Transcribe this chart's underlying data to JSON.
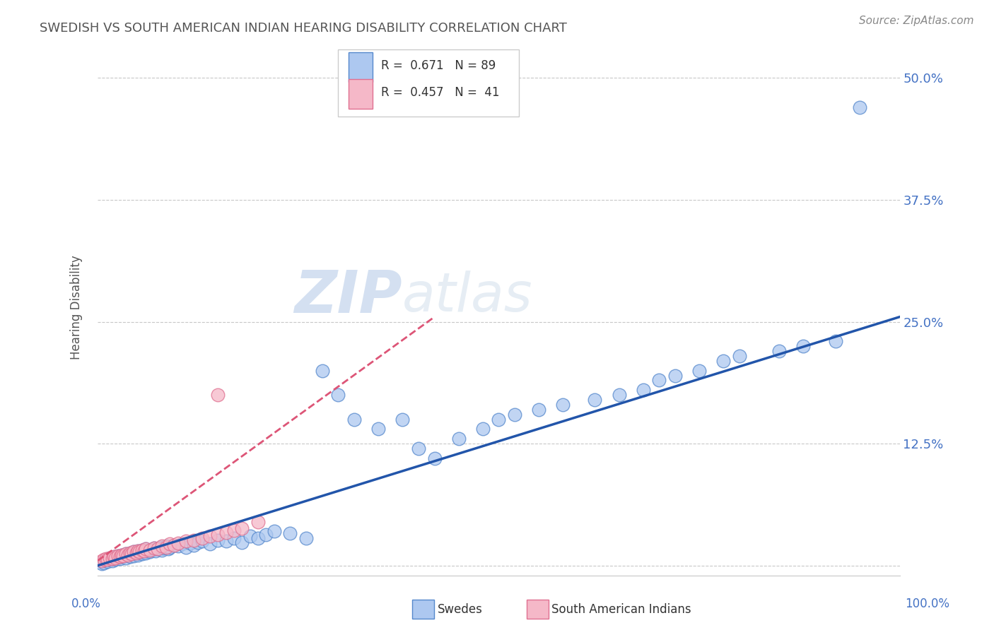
{
  "title": "SWEDISH VS SOUTH AMERICAN INDIAN HEARING DISABILITY CORRELATION CHART",
  "source": "Source: ZipAtlas.com",
  "ylabel": "Hearing Disability",
  "ytick_vals": [
    0.0,
    0.125,
    0.25,
    0.375,
    0.5
  ],
  "ytick_labels": [
    "",
    "12.5%",
    "25.0%",
    "37.5%",
    "50.0%"
  ],
  "xlim": [
    0.0,
    1.0
  ],
  "ylim": [
    -0.01,
    0.54
  ],
  "blue_R": 0.671,
  "blue_N": 89,
  "pink_R": 0.457,
  "pink_N": 41,
  "blue_scatter_color": "#adc8f0",
  "blue_edge_color": "#5588cc",
  "blue_line_color": "#2255aa",
  "pink_scatter_color": "#f5b8c8",
  "pink_edge_color": "#e07090",
  "pink_line_color": "#dd5577",
  "legend_label_blue": "Swedes",
  "legend_label_pink": "South American Indians",
  "background_color": "#ffffff",
  "grid_color": "#c8c8c8",
  "title_color": "#555555",
  "yaxis_label_color": "#4472c4",
  "blue_x": [
    0.005,
    0.008,
    0.01,
    0.012,
    0.015,
    0.015,
    0.018,
    0.02,
    0.022,
    0.022,
    0.025,
    0.025,
    0.028,
    0.03,
    0.03,
    0.032,
    0.035,
    0.035,
    0.038,
    0.04,
    0.04,
    0.042,
    0.045,
    0.045,
    0.048,
    0.05,
    0.05,
    0.052,
    0.055,
    0.055,
    0.058,
    0.06,
    0.06,
    0.062,
    0.065,
    0.068,
    0.07,
    0.072,
    0.075,
    0.078,
    0.08,
    0.082,
    0.085,
    0.088,
    0.09,
    0.095,
    0.1,
    0.105,
    0.11,
    0.115,
    0.12,
    0.125,
    0.13,
    0.14,
    0.15,
    0.16,
    0.17,
    0.18,
    0.19,
    0.2,
    0.21,
    0.22,
    0.24,
    0.26,
    0.28,
    0.3,
    0.32,
    0.35,
    0.38,
    0.4,
    0.42,
    0.45,
    0.48,
    0.5,
    0.52,
    0.55,
    0.58,
    0.62,
    0.65,
    0.68,
    0.7,
    0.72,
    0.75,
    0.78,
    0.8,
    0.85,
    0.88,
    0.92,
    0.95
  ],
  "blue_y": [
    0.002,
    0.003,
    0.005,
    0.004,
    0.006,
    0.008,
    0.005,
    0.007,
    0.006,
    0.009,
    0.008,
    0.01,
    0.007,
    0.009,
    0.011,
    0.01,
    0.008,
    0.012,
    0.011,
    0.009,
    0.013,
    0.012,
    0.01,
    0.014,
    0.013,
    0.011,
    0.015,
    0.013,
    0.012,
    0.016,
    0.014,
    0.013,
    0.017,
    0.015,
    0.014,
    0.016,
    0.018,
    0.015,
    0.017,
    0.019,
    0.016,
    0.018,
    0.02,
    0.017,
    0.019,
    0.021,
    0.02,
    0.022,
    0.019,
    0.023,
    0.021,
    0.024,
    0.025,
    0.022,
    0.026,
    0.025,
    0.028,
    0.024,
    0.03,
    0.028,
    0.032,
    0.035,
    0.033,
    0.028,
    0.2,
    0.175,
    0.15,
    0.14,
    0.15,
    0.12,
    0.11,
    0.13,
    0.14,
    0.15,
    0.155,
    0.16,
    0.165,
    0.17,
    0.175,
    0.18,
    0.19,
    0.195,
    0.2,
    0.21,
    0.215,
    0.22,
    0.225,
    0.23,
    0.47
  ],
  "pink_x": [
    0.005,
    0.008,
    0.01,
    0.012,
    0.015,
    0.018,
    0.02,
    0.022,
    0.025,
    0.028,
    0.03,
    0.032,
    0.035,
    0.038,
    0.04,
    0.042,
    0.045,
    0.048,
    0.05,
    0.052,
    0.055,
    0.058,
    0.06,
    0.065,
    0.07,
    0.075,
    0.08,
    0.085,
    0.09,
    0.095,
    0.1,
    0.11,
    0.12,
    0.13,
    0.14,
    0.15,
    0.16,
    0.17,
    0.18,
    0.2,
    0.15
  ],
  "pink_y": [
    0.005,
    0.006,
    0.007,
    0.006,
    0.008,
    0.007,
    0.009,
    0.008,
    0.01,
    0.009,
    0.011,
    0.01,
    0.012,
    0.011,
    0.013,
    0.012,
    0.014,
    0.013,
    0.015,
    0.014,
    0.016,
    0.015,
    0.017,
    0.016,
    0.018,
    0.017,
    0.02,
    0.019,
    0.022,
    0.021,
    0.023,
    0.025,
    0.026,
    0.028,
    0.03,
    0.032,
    0.034,
    0.036,
    0.038,
    0.045,
    0.175
  ],
  "blue_line_x": [
    0.0,
    1.0
  ],
  "blue_line_y": [
    0.0,
    0.255
  ],
  "pink_line_x": [
    0.0,
    0.42
  ],
  "pink_line_y": [
    0.005,
    0.255
  ]
}
